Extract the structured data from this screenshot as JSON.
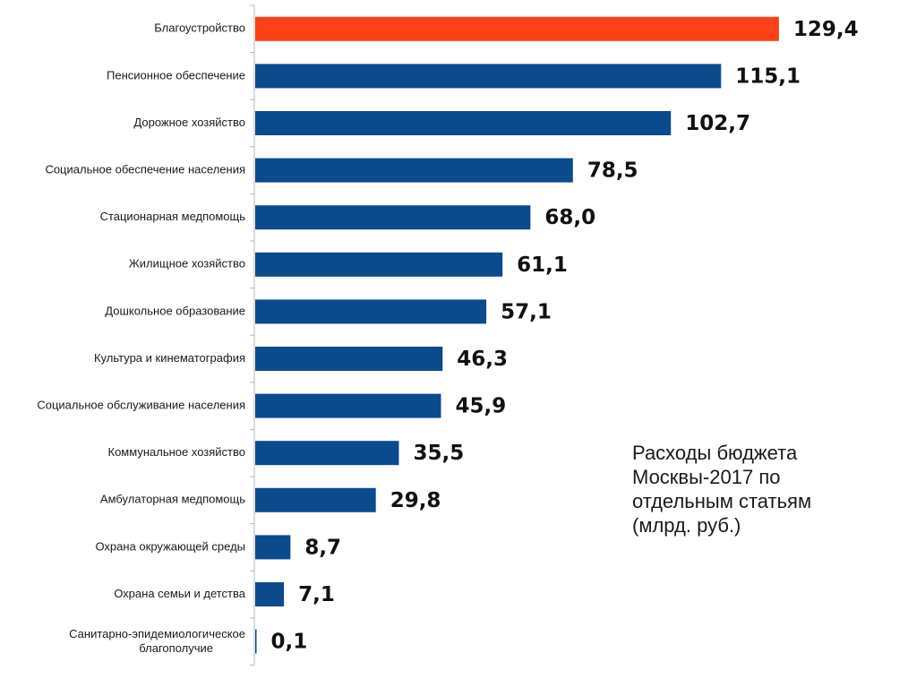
{
  "chart_data": {
    "type": "bar",
    "orientation": "horizontal",
    "title": "Расходы бюджета Москвы-2017 по отдельным статьям (млрд. руб.)",
    "title_lines": [
      "Расходы бюджета",
      "Москвы-2017 по",
      "отдельным статьям",
      "(млрд. руб.)"
    ],
    "categories": [
      "Благоустройство",
      "Пенсионное обеспечение",
      "Дорожное хозяйство",
      "Социальное обеспечение населения",
      "Стационарная медпомощь",
      "Жилищное хозяйство",
      "Дошкольное образование",
      "Культура и кинематография",
      "Социальное обслуживание населения",
      "Коммунальное хозяйство",
      "Амбулаторная медпомощь",
      "Охрана окружающей среды",
      "Охрана семьи и детства",
      "Санитарно-эпидемиологическое благополучие"
    ],
    "values": [
      129.4,
      115.1,
      102.7,
      78.5,
      68.0,
      61.1,
      57.1,
      46.3,
      45.9,
      35.5,
      29.8,
      8.7,
      7.1,
      0.1
    ],
    "value_labels": [
      "129,4",
      "115,1",
      "102,7",
      "78,5",
      "68,0",
      "61,1",
      "57,1",
      "46,3",
      "45,9",
      "35,5",
      "29,8",
      "8,7",
      "7,1",
      "0,1"
    ],
    "xlim": [
      0,
      145
    ],
    "grid": false,
    "legend": "none",
    "colors": {
      "highlight": "#FC4116",
      "bar": "#0C4A8E",
      "axis": "#B8B8B8"
    },
    "highlight_index": 0
  }
}
